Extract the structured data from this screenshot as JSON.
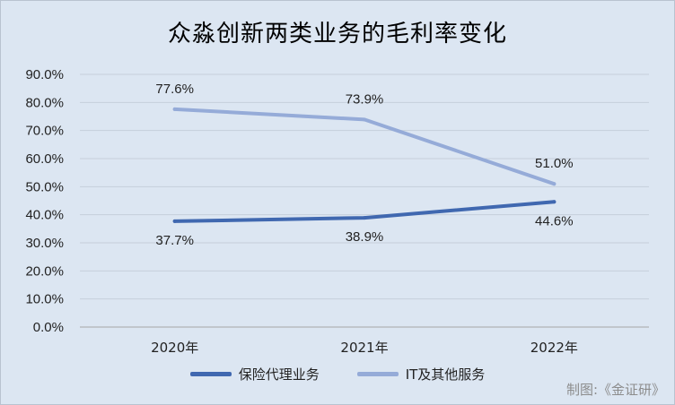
{
  "chart_data": {
    "type": "line",
    "title": "众淼创新两类业务的毛利率变化",
    "xlabel": "",
    "ylabel": "",
    "categories": [
      "2020年",
      "2021年",
      "2022年"
    ],
    "ylim": [
      0,
      90
    ],
    "yticks": [
      "0.0%",
      "10.0%",
      "20.0%",
      "30.0%",
      "40.0%",
      "50.0%",
      "60.0%",
      "70.0%",
      "80.0%",
      "90.0%"
    ],
    "grid": true,
    "legend_position": "bottom",
    "series": [
      {
        "name": "保险代理业务",
        "values": [
          37.7,
          38.9,
          44.6
        ],
        "labels": [
          "37.7%",
          "38.9%",
          "44.6%"
        ],
        "label_position": "below",
        "color": "#4068b0"
      },
      {
        "name": "IT及其他服务",
        "values": [
          77.6,
          73.9,
          51.0
        ],
        "labels": [
          "77.6%",
          "73.9%",
          "51.0%"
        ],
        "label_position": "above",
        "color": "#95abd8"
      }
    ]
  },
  "credit": "制图:《金证研》"
}
